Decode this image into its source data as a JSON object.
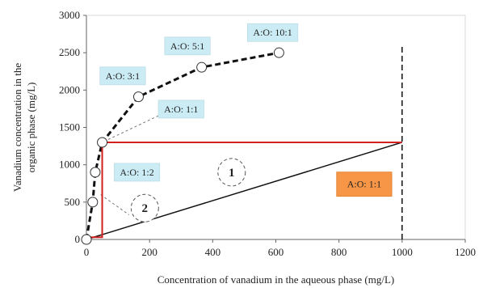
{
  "chart_data": {
    "type": "line",
    "title": "",
    "xlabel": "Concentration of vanadium in the aqueous phase (mg/L)",
    "ylabel_lines": [
      "Vanadium concentration in the",
      "organic phase (mg/L)"
    ],
    "xlim": [
      0,
      1200
    ],
    "ylim": [
      0,
      3000
    ],
    "xticks": [
      0,
      200,
      400,
      600,
      800,
      1000,
      1200
    ],
    "yticks": [
      0,
      500,
      1000,
      1500,
      2000,
      2500,
      3000
    ],
    "grid": false,
    "series": [
      {
        "role": "equilibrium-isotherm",
        "style": "thick-dashed-with-markers",
        "color": "#111111",
        "x": [
          0,
          20,
          28,
          50,
          165,
          365,
          610
        ],
        "y": [
          0,
          500,
          900,
          1300,
          1910,
          2305,
          2500
        ]
      },
      {
        "role": "operating-line-a-o-1-1",
        "style": "solid",
        "color": "#111111",
        "x": [
          0,
          1000
        ],
        "y": [
          0,
          1300
        ]
      },
      {
        "role": "mccabe-thiele-steps",
        "style": "solid",
        "color": "#d02020",
        "x": [
          45,
          1000,
          1000,
          50,
          50,
          0
        ],
        "y": [
          1300,
          1300,
          1300,
          1300,
          30,
          30
        ]
      },
      {
        "role": "feed-concentration-line",
        "style": "dashed",
        "color": "#111111",
        "x": [
          1000,
          1000
        ],
        "y": [
          0,
          2600
        ]
      }
    ],
    "guide_lines": [
      {
        "to": "A:O: 1:1",
        "x": [
          55,
          230
        ],
        "y": [
          1310,
          1660
        ]
      },
      {
        "to": "A:O: 1:2",
        "x": [
          45,
          135
        ],
        "y": [
          600,
          330
        ]
      }
    ],
    "annotations": [
      {
        "text": "A:O: 10:1",
        "x": 590,
        "y": 2770
      },
      {
        "text": "A:O: 5:1",
        "x": 320,
        "y": 2590
      },
      {
        "text": "A:O: 3:1",
        "x": 115,
        "y": 2190
      },
      {
        "text": "A:O: 1:1",
        "x": 300,
        "y": 1745
      },
      {
        "text": "A:O: 1:2",
        "x": 160,
        "y": 900
      }
    ],
    "highlight_annotation": {
      "text": "A:O: 1:1",
      "x": 880,
      "y": 740,
      "fill": "#f79646"
    },
    "stage_labels": [
      {
        "text": "1",
        "x": 460,
        "y": 900
      },
      {
        "text": "2",
        "x": 185,
        "y": 420
      }
    ],
    "colors": {
      "annotation_box": "#ccecf5",
      "annotation_border": "#bcdde6",
      "highlight_box": "#f79646",
      "steps": "#d02020",
      "axis": "#666666"
    }
  }
}
